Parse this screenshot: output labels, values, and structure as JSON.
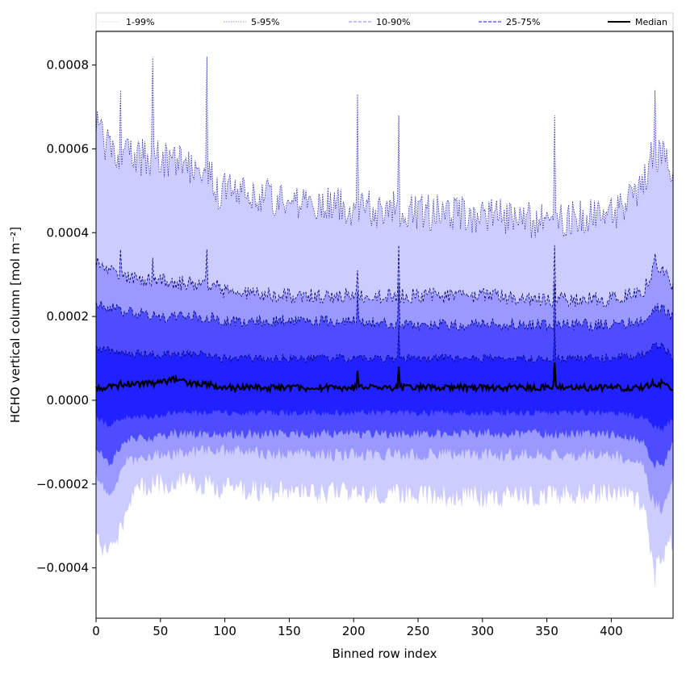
{
  "chart_data": {
    "type": "area",
    "xlabel": "Binned row index",
    "ylabel": "HCHO vertical column [mol m⁻²]",
    "xlim": [
      0,
      448
    ],
    "ylim": [
      -0.00052,
      0.00088
    ],
    "x_ticks": [
      0,
      50,
      100,
      150,
      200,
      250,
      300,
      350,
      400
    ],
    "x_tick_labels": [
      "0",
      "50",
      "100",
      "150",
      "200",
      "250",
      "300",
      "350",
      "400"
    ],
    "y_ticks": [
      -0.0004,
      -0.0002,
      0.0,
      0.0002,
      0.0004,
      0.0006,
      0.0008
    ],
    "y_tick_labels": [
      "−0.0004",
      "−0.0002",
      "0.0000",
      "0.0002",
      "0.0004",
      "0.0006",
      "0.0008"
    ],
    "legend_position": "top, spanning plot width",
    "legend": [
      {
        "label": "1-99%",
        "style": "dotted",
        "color": "#c8c8ff"
      },
      {
        "label": "5-95%",
        "style": "dotted",
        "color": "#6b6bff"
      },
      {
        "label": "10-90%",
        "style": "dashed",
        "color": "#8080ff"
      },
      {
        "label": "25-75%",
        "style": "dashed",
        "color": "#4040ff"
      },
      {
        "label": "Median",
        "style": "solid",
        "color": "#000000"
      }
    ],
    "band_colors": {
      "p01_99": "#ccccff",
      "p05_95": "#9999ff",
      "p10_90": "#4d4dff",
      "p25_75": "#2121ff"
    },
    "series_profile": {
      "x": [
        0,
        5,
        10,
        22,
        30,
        45,
        60,
        75,
        87,
        95,
        100,
        150,
        200,
        250,
        300,
        350,
        400,
        425,
        432,
        440,
        448
      ],
      "p99": [
        0.00062,
        0.00063,
        0.0006,
        0.00058,
        0.00058,
        0.00058,
        0.00057,
        0.00055,
        0.00056,
        0.0005,
        0.0005,
        0.00048,
        0.00046,
        0.00045,
        0.00044,
        0.00043,
        0.00044,
        0.00052,
        0.00058,
        0.0006,
        0.00053
      ],
      "p95": [
        0.00032,
        0.00032,
        0.00031,
        0.0003,
        0.00029,
        0.00029,
        0.00028,
        0.00028,
        0.00028,
        0.00027,
        0.00026,
        0.00025,
        0.00025,
        0.00025,
        0.00025,
        0.00024,
        0.00024,
        0.00026,
        0.00031,
        0.00031,
        0.00027
      ],
      "p90": [
        0.00023,
        0.00023,
        0.00022,
        0.00021,
        0.00021,
        0.0002,
        0.0002,
        0.0002,
        0.0002,
        0.00019,
        0.00019,
        0.00019,
        0.00019,
        0.00018,
        0.00018,
        0.00018,
        0.00018,
        0.00019,
        0.00022,
        0.00022,
        0.0002
      ],
      "p75": [
        0.00012,
        0.00012,
        0.00012,
        0.00011,
        0.00011,
        0.00011,
        0.00011,
        0.00011,
        0.00011,
        0.0001,
        0.0001,
        0.0001,
        0.0001,
        0.0001,
        0.0001,
        0.0001,
        0.0001,
        0.00011,
        0.00013,
        0.00013,
        0.0001
      ],
      "median": [
        3e-05,
        3e-05,
        3e-05,
        4e-05,
        4e-05,
        4e-05,
        5e-05,
        4e-05,
        4e-05,
        3e-05,
        3e-05,
        3e-05,
        3e-05,
        3e-05,
        3e-05,
        3e-05,
        3e-05,
        3e-05,
        4e-05,
        4e-05,
        3e-05
      ],
      "p25": [
        -4e-05,
        -5e-05,
        -6e-05,
        -4e-05,
        -4e-05,
        -4e-05,
        -3e-05,
        -3e-05,
        -3e-05,
        -3e-05,
        -3e-05,
        -3e-05,
        -3e-05,
        -3e-05,
        -3e-05,
        -3e-05,
        -3e-05,
        -4e-05,
        -6e-05,
        -7e-05,
        -4e-05
      ],
      "p10": [
        -0.00011,
        -0.00013,
        -0.00015,
        -0.0001,
        -9e-05,
        -9e-05,
        -8e-05,
        -8e-05,
        -8e-05,
        -8e-05,
        -8e-05,
        -8e-05,
        -8e-05,
        -8e-05,
        -8e-05,
        -8e-05,
        -8e-05,
        -0.0001,
        -0.00015,
        -0.00016,
        -0.0001
      ],
      "p05": [
        -0.00018,
        -0.0002,
        -0.00023,
        -0.00015,
        -0.00014,
        -0.00013,
        -0.00013,
        -0.00012,
        -0.00012,
        -0.00012,
        -0.00012,
        -0.00013,
        -0.00013,
        -0.00013,
        -0.00013,
        -0.00013,
        -0.00013,
        -0.00015,
        -0.00024,
        -0.00026,
        -0.00018
      ],
      "p01": [
        -0.00033,
        -0.00036,
        -0.00036,
        -0.0003,
        -0.00021,
        -0.0002,
        -0.0002,
        -0.0002,
        -0.0002,
        -0.00021,
        -0.00021,
        -0.00022,
        -0.00022,
        -0.00023,
        -0.00023,
        -0.00023,
        -0.00022,
        -0.00024,
        -0.0004,
        -0.00038,
        -0.00033
      ]
    },
    "spikes": [
      {
        "x": 1,
        "p99": 0.00069,
        "p95": 0.00034
      },
      {
        "x": 13,
        "p99": 0.00062
      },
      {
        "x": 19,
        "p99": 0.00074,
        "p95": 0.00036
      },
      {
        "x": 44,
        "p99": 0.00082,
        "p95": 0.00034
      },
      {
        "x": 86,
        "p99": 0.00082,
        "p95": 0.00036
      },
      {
        "x": 203,
        "p99": 0.00073,
        "p95": 0.00031,
        "p90": 0.00026,
        "median": 7e-05
      },
      {
        "x": 235,
        "p99": 0.00068,
        "p95": 0.00037,
        "p90": 0.00028,
        "p75": 0.00018,
        "median": 8e-05
      },
      {
        "x": 356,
        "p99": 0.00068,
        "p95": 0.00037,
        "p90": 0.00028,
        "p75": 0.00019,
        "median": 9e-05
      },
      {
        "x": 434,
        "p99": 0.00074,
        "p95": 0.00035,
        "p01": -0.00045
      }
    ]
  }
}
